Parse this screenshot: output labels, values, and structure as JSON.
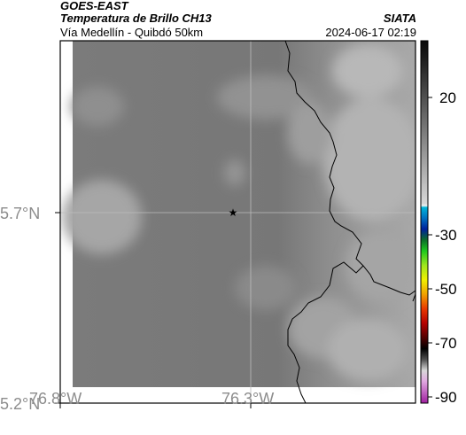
{
  "header": {
    "satellite": "GOES-EAST",
    "product": "Temperatura de Brillo CH13",
    "source": "SIATA",
    "subtitle": "Vía Medellín - Quibdó 50km",
    "datetime": "2024-06-17 02:19"
  },
  "axes": {
    "lon_labels": [
      "76.8°W",
      "76.3°W"
    ],
    "lat_labels": [
      "5.7°N",
      "5.2°N"
    ]
  },
  "colorbar": {
    "tick_labels": [
      "20",
      "-30",
      "-50",
      "-70",
      "-90"
    ],
    "ticks": [
      20,
      -30,
      -50,
      -70,
      -90
    ],
    "range": [
      -95,
      40
    ]
  },
  "marker": {
    "type": "star",
    "color": "#000000"
  },
  "colors": {
    "frame": "#000000",
    "grid": "#bdbdbd",
    "coastline": "#000000"
  }
}
